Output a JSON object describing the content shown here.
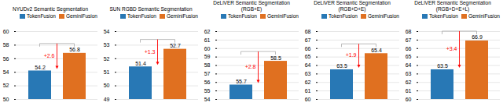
{
  "chart_data": [
    {
      "type": "bar",
      "title": "NYUDv2 Semantic Segmentation",
      "categories": [
        null
      ],
      "series": [
        {
          "name": "TokenFusion",
          "color": "#2878b5",
          "values": [
            54.2
          ]
        },
        {
          "name": "GeminiFusion",
          "color": "#e07020",
          "values": [
            56.8
          ]
        }
      ],
      "ylim": [
        50,
        60
      ],
      "yticks": [
        50,
        52,
        54,
        56,
        58,
        60
      ],
      "grid": true,
      "legend": "upper right",
      "data_labels": true,
      "tick_labels": "y",
      "annotations": [
        {
          "text": "+2.6",
          "color": "red"
        }
      ]
    },
    {
      "type": "bar",
      "title": "SUN RGBD Semantic Segmentation",
      "categories": [
        null
      ],
      "series": [
        {
          "name": "TokenFusion",
          "color": "#2878b5",
          "values": [
            51.4
          ]
        },
        {
          "name": "GeminiFusion",
          "color": "#e07020",
          "values": [
            52.7
          ]
        }
      ],
      "ylim": [
        49,
        54
      ],
      "yticks": [
        49,
        50,
        51,
        52,
        53,
        54
      ],
      "grid": true,
      "legend": "upper right",
      "data_labels": true,
      "tick_labels": "y",
      "annotations": [
        {
          "text": "+1.3",
          "color": "red"
        }
      ]
    },
    {
      "type": "bar",
      "title": "DeLiVER Semantic Segmentation (RGB+E)",
      "categories": [
        null
      ],
      "series": [
        {
          "name": "TokenFusion",
          "color": "#2878b5",
          "values": [
            55.7
          ]
        },
        {
          "name": "GeminiFusion",
          "color": "#e07020",
          "values": [
            58.5
          ]
        }
      ],
      "ylim": [
        54,
        62
      ],
      "yticks": [
        54,
        55,
        56,
        57,
        58,
        59,
        60,
        61,
        62
      ],
      "grid": true,
      "legend": "upper right",
      "data_labels": true,
      "tick_labels": "y",
      "annotations": [
        {
          "text": "+2.8",
          "color": "red"
        }
      ]
    },
    {
      "type": "bar",
      "title": "DeLiVER Semantic Segmentation (RGB+D+E)",
      "categories": [
        null
      ],
      "series": [
        {
          "name": "TokenFusion",
          "color": "#2878b5",
          "values": [
            63.5
          ]
        },
        {
          "name": "GeminiFusion",
          "color": "#e07020",
          "values": [
            65.4
          ]
        }
      ],
      "ylim": [
        60,
        68
      ],
      "yticks": [
        60,
        61,
        62,
        63,
        64,
        65,
        66,
        67,
        68
      ],
      "grid": true,
      "legend": "upper right",
      "data_labels": true,
      "tick_labels": "y",
      "annotations": [
        {
          "text": "+1.9",
          "color": "red"
        }
      ]
    },
    {
      "type": "bar",
      "title": "DeLiVER Semantic Segmentation (RGB+D+E+L)",
      "categories": [
        null
      ],
      "series": [
        {
          "name": "TokenFusion",
          "color": "#2878b5",
          "values": [
            63.5
          ]
        },
        {
          "name": "GeminiFusion",
          "color": "#e07020",
          "values": [
            66.9
          ]
        }
      ],
      "ylim": [
        60,
        68
      ],
      "yticks": [
        60,
        61,
        62,
        63,
        64,
        65,
        66,
        67,
        68
      ],
      "grid": true,
      "legend": "upper right",
      "data_labels": true,
      "tick_labels": "y",
      "annotations": [
        {
          "text": "+3.4",
          "color": "red"
        }
      ]
    }
  ]
}
